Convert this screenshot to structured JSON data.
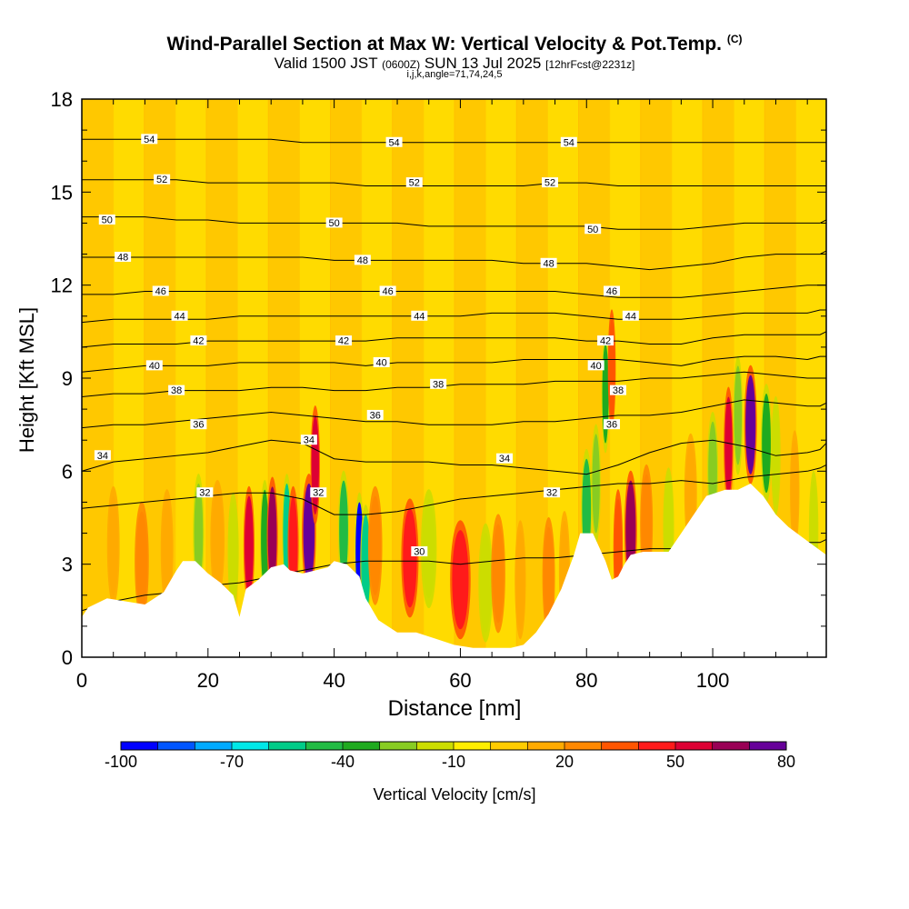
{
  "header": {
    "title": "Wind-Parallel Section at Max W: Vertical Velocity & Pot.Temp.",
    "title_units": "(C)",
    "valid_prefix": "Valid 1500 JST",
    "valid_utc": "(0600Z)",
    "valid_date": "SUN 13 Jul 2025",
    "forecast": "[12hrFcst@2231z]",
    "indices": "i,j,k,angle=71,74,24,5"
  },
  "chart_data": {
    "type": "contour",
    "xlabel": "Distance [nm]",
    "ylabel": "Height [Kft MSL]",
    "xlim": [
      0,
      118
    ],
    "ylim": [
      0,
      18
    ],
    "x_ticks": [
      0,
      20,
      40,
      60,
      80,
      100
    ],
    "y_ticks": [
      0,
      3,
      6,
      9,
      12,
      15,
      18
    ],
    "fill_variable": "Vertical Velocity [cm/s]",
    "contour_variable": "Potential Temperature (C)",
    "terrain": {
      "x": [
        0,
        1,
        4,
        10,
        13,
        15,
        16,
        18,
        20,
        22,
        24,
        25,
        26,
        28,
        30,
        32,
        33,
        35,
        37,
        39,
        40,
        42,
        44,
        45,
        47,
        50,
        53,
        56,
        59,
        62,
        65,
        68,
        70,
        72,
        74,
        76,
        78,
        79,
        81,
        83,
        84,
        85,
        86,
        87,
        89,
        91,
        93,
        95,
        97,
        99,
        102,
        104,
        106,
        108,
        110,
        112,
        114,
        116,
        118
      ],
      "y": [
        1.3,
        1.6,
        1.9,
        1.7,
        2.1,
        2.8,
        3.1,
        3.1,
        2.7,
        2.4,
        2.0,
        1.3,
        2.2,
        2.5,
        2.9,
        3.0,
        2.8,
        2.7,
        2.8,
        2.9,
        3.1,
        3.0,
        2.6,
        1.9,
        1.2,
        0.8,
        0.8,
        0.6,
        0.4,
        0.3,
        0.3,
        0.3,
        0.4,
        0.8,
        1.4,
        2.2,
        3.3,
        4.0,
        4.0,
        3.1,
        2.5,
        2.6,
        3.0,
        3.3,
        3.4,
        3.4,
        3.4,
        4.0,
        4.6,
        5.2,
        5.4,
        5.4,
        5.6,
        5.2,
        4.6,
        4.2,
        3.9,
        3.6,
        3.3
      ]
    },
    "isentropes": [
      {
        "theta": 30,
        "y": [
          1.5,
          1.8,
          2.0,
          2.1,
          2.3,
          2.4,
          2.6,
          2.8,
          3.0,
          3.1,
          3.1,
          3.1,
          3.0,
          3.1,
          3.2,
          3.2,
          3.3,
          3.4,
          3.5,
          3.5,
          3.5,
          3.6,
          3.6,
          3.7,
          3.7,
          3.8
        ]
      },
      {
        "theta": 32,
        "y": [
          4.8,
          4.9,
          5.0,
          5.1,
          5.2,
          5.3,
          5.3,
          5.1,
          4.6,
          4.6,
          4.7,
          4.9,
          5.1,
          5.2,
          5.3,
          5.4,
          5.5,
          5.6,
          5.6,
          5.7,
          5.6,
          5.8,
          5.9,
          6.0,
          6.1,
          6.2
        ]
      },
      {
        "theta": 34,
        "y": [
          6.0,
          6.3,
          6.4,
          6.5,
          6.6,
          6.8,
          7.0,
          6.9,
          6.4,
          6.3,
          6.3,
          6.3,
          6.2,
          6.2,
          6.1,
          6.0,
          5.9,
          6.2,
          6.6,
          6.9,
          7.0,
          6.8,
          6.5,
          6.6,
          6.7,
          6.9
        ]
      },
      {
        "theta": 36,
        "y": [
          7.4,
          7.5,
          7.5,
          7.6,
          7.7,
          7.8,
          7.9,
          7.8,
          7.7,
          7.6,
          7.6,
          7.5,
          7.5,
          7.5,
          7.6,
          7.6,
          7.7,
          7.8,
          7.8,
          7.9,
          8.1,
          8.3,
          8.2,
          8.1,
          8.1,
          8.2
        ]
      },
      {
        "theta": 38,
        "y": [
          8.4,
          8.5,
          8.5,
          8.6,
          8.6,
          8.6,
          8.7,
          8.7,
          8.6,
          8.6,
          8.7,
          8.7,
          8.8,
          8.8,
          8.8,
          8.9,
          8.9,
          8.9,
          9.0,
          9.0,
          9.1,
          9.2,
          9.1,
          9.0,
          9.0,
          9.0
        ]
      },
      {
        "theta": 40,
        "y": [
          9.2,
          9.3,
          9.4,
          9.4,
          9.4,
          9.5,
          9.5,
          9.5,
          9.5,
          9.4,
          9.5,
          9.5,
          9.5,
          9.5,
          9.6,
          9.6,
          9.6,
          9.6,
          9.5,
          9.4,
          9.6,
          9.7,
          9.7,
          9.6,
          9.7,
          9.7
        ]
      },
      {
        "theta": 42,
        "y": [
          10.0,
          10.1,
          10.1,
          10.1,
          10.2,
          10.2,
          10.2,
          10.2,
          10.2,
          10.2,
          10.3,
          10.3,
          10.3,
          10.3,
          10.3,
          10.3,
          10.2,
          10.2,
          10.1,
          10.1,
          10.3,
          10.4,
          10.4,
          10.4,
          10.4,
          10.5
        ]
      },
      {
        "theta": 44,
        "y": [
          10.8,
          10.9,
          10.9,
          10.9,
          10.9,
          11.0,
          11.0,
          11.0,
          11.0,
          11.0,
          11.0,
          11.0,
          11.0,
          11.1,
          11.1,
          11.1,
          11.0,
          10.9,
          10.9,
          10.9,
          11.0,
          11.1,
          11.1,
          11.1,
          11.2,
          11.2
        ]
      },
      {
        "theta": 46,
        "y": [
          11.7,
          11.7,
          11.8,
          11.8,
          11.8,
          11.8,
          11.8,
          11.8,
          11.8,
          11.8,
          11.8,
          11.8,
          11.8,
          11.8,
          11.8,
          11.8,
          11.7,
          11.6,
          11.6,
          11.6,
          11.7,
          11.8,
          11.9,
          12.0,
          12.0,
          12.0
        ]
      },
      {
        "theta": 48,
        "y": [
          12.9,
          12.9,
          12.9,
          12.9,
          12.9,
          12.9,
          12.9,
          12.9,
          12.8,
          12.8,
          12.8,
          12.8,
          12.8,
          12.8,
          12.7,
          12.7,
          12.7,
          12.6,
          12.5,
          12.6,
          12.7,
          12.9,
          13.0,
          13.0,
          13.0,
          13.1
        ]
      },
      {
        "theta": 50,
        "y": [
          14.2,
          14.2,
          14.2,
          14.1,
          14.1,
          14.0,
          14.0,
          14.0,
          14.0,
          14.0,
          14.0,
          13.9,
          13.9,
          13.9,
          13.9,
          13.9,
          13.9,
          13.8,
          13.8,
          13.8,
          13.9,
          14.0,
          14.0,
          14.0,
          14.0,
          14.1
        ]
      },
      {
        "theta": 52,
        "y": [
          15.4,
          15.4,
          15.4,
          15.4,
          15.3,
          15.3,
          15.3,
          15.3,
          15.3,
          15.2,
          15.2,
          15.2,
          15.2,
          15.2,
          15.2,
          15.3,
          15.3,
          15.2,
          15.2,
          15.2,
          15.2,
          15.2,
          15.2,
          15.2,
          15.2,
          15.2
        ]
      },
      {
        "theta": 54,
        "y": [
          16.7,
          16.7,
          16.7,
          16.7,
          16.7,
          16.7,
          16.7,
          16.6,
          16.6,
          16.6,
          16.6,
          16.6,
          16.6,
          16.6,
          16.6,
          16.6,
          16.6,
          16.6,
          16.6,
          16.6,
          16.6,
          16.6,
          16.6,
          16.6,
          16.6,
          16.6
        ]
      }
    ],
    "isentrope_x": [
      0,
      5,
      10,
      15,
      20,
      25,
      30,
      35,
      40,
      45,
      50,
      55,
      60,
      65,
      70,
      75,
      80,
      85,
      90,
      95,
      100,
      105,
      110,
      115,
      117,
      118
    ],
    "isentrope_labels": [
      {
        "text": "30",
        "x": 53.5,
        "y": 3.4
      },
      {
        "text": "32",
        "x": 19.5,
        "y": 5.3
      },
      {
        "text": "32",
        "x": 37.5,
        "y": 5.3
      },
      {
        "text": "32",
        "x": 74.5,
        "y": 5.3
      },
      {
        "text": "34",
        "x": 3.3,
        "y": 6.5
      },
      {
        "text": "34",
        "x": 36.0,
        "y": 7.0
      },
      {
        "text": "34",
        "x": 67.0,
        "y": 6.4
      },
      {
        "text": "36",
        "x": 18.5,
        "y": 7.5
      },
      {
        "text": "36",
        "x": 46.5,
        "y": 7.8
      },
      {
        "text": "36",
        "x": 84.0,
        "y": 7.5
      },
      {
        "text": "38",
        "x": 15.0,
        "y": 8.6
      },
      {
        "text": "38",
        "x": 56.5,
        "y": 8.8
      },
      {
        "text": "38",
        "x": 85.0,
        "y": 8.6
      },
      {
        "text": "40",
        "x": 11.5,
        "y": 9.4
      },
      {
        "text": "40",
        "x": 47.5,
        "y": 9.5
      },
      {
        "text": "40",
        "x": 81.5,
        "y": 9.4
      },
      {
        "text": "42",
        "x": 18.5,
        "y": 10.2
      },
      {
        "text": "42",
        "x": 41.5,
        "y": 10.2
      },
      {
        "text": "42",
        "x": 83.0,
        "y": 10.2
      },
      {
        "text": "44",
        "x": 15.5,
        "y": 11.0
      },
      {
        "text": "44",
        "x": 53.5,
        "y": 11.0
      },
      {
        "text": "44",
        "x": 87.0,
        "y": 11.0
      },
      {
        "text": "46",
        "x": 12.5,
        "y": 11.8
      },
      {
        "text": "46",
        "x": 48.5,
        "y": 11.8
      },
      {
        "text": "46",
        "x": 84.0,
        "y": 11.8
      },
      {
        "text": "48",
        "x": 6.5,
        "y": 12.9
      },
      {
        "text": "48",
        "x": 44.5,
        "y": 12.8
      },
      {
        "text": "48",
        "x": 74.0,
        "y": 12.7
      },
      {
        "text": "50",
        "x": 4.0,
        "y": 14.1
      },
      {
        "text": "50",
        "x": 40.0,
        "y": 14.0
      },
      {
        "text": "50",
        "x": 81.0,
        "y": 13.8
      },
      {
        "text": "52",
        "x": 12.7,
        "y": 15.4
      },
      {
        "text": "52",
        "x": 52.7,
        "y": 15.3
      },
      {
        "text": "52",
        "x": 74.2,
        "y": 15.3
      },
      {
        "text": "54",
        "x": 10.7,
        "y": 16.7
      },
      {
        "text": "54",
        "x": 49.5,
        "y": 16.6
      },
      {
        "text": "54",
        "x": 77.2,
        "y": 16.6
      }
    ],
    "velocity_cells": [
      {
        "x": 5,
        "y": 3.6,
        "w": 0.8,
        "v": 14
      },
      {
        "x": 9.5,
        "y": 3.1,
        "w": 0.9,
        "v": 20
      },
      {
        "x": 13.5,
        "y": 3.5,
        "w": 0.8,
        "v": 10
      },
      {
        "x": 18.5,
        "y": 4.0,
        "w": 0.7,
        "v": -28
      },
      {
        "x": 21.5,
        "y": 3.8,
        "w": 0.9,
        "v": 18
      },
      {
        "x": 24,
        "y": 3.4,
        "w": 0.7,
        "v": -20
      },
      {
        "x": 26.5,
        "y": 3.6,
        "w": 0.7,
        "v": 55
      },
      {
        "x": 29,
        "y": 3.8,
        "w": 0.6,
        "v": -40
      },
      {
        "x": 30.2,
        "y": 3.9,
        "w": 0.7,
        "v": 60
      },
      {
        "x": 32.5,
        "y": 4.0,
        "w": 0.6,
        "v": -55
      },
      {
        "x": 33.5,
        "y": 3.6,
        "w": 0.7,
        "v": 40
      },
      {
        "x": 36,
        "y": 4.0,
        "w": 0.9,
        "v": 72
      },
      {
        "x": 37,
        "y": 6.2,
        "w": 0.6,
        "v": 55
      },
      {
        "x": 41.5,
        "y": 4.1,
        "w": 0.7,
        "v": -45
      },
      {
        "x": 44,
        "y": 3.4,
        "w": 0.6,
        "v": -100
      },
      {
        "x": 45,
        "y": 3.0,
        "w": 0.7,
        "v": -60
      },
      {
        "x": 46.5,
        "y": 3.6,
        "w": 0.9,
        "v": 22
      },
      {
        "x": 52,
        "y": 3.2,
        "w": 1.1,
        "v": 42
      },
      {
        "x": 55,
        "y": 3.5,
        "w": 1.0,
        "v": -12
      },
      {
        "x": 60,
        "y": 2.5,
        "w": 1.3,
        "v": 40
      },
      {
        "x": 64,
        "y": 2.4,
        "w": 0.9,
        "v": -18
      },
      {
        "x": 66,
        "y": 2.7,
        "w": 0.9,
        "v": 22
      },
      {
        "x": 69.5,
        "y": 2.5,
        "w": 0.7,
        "v": 10
      },
      {
        "x": 74,
        "y": 2.6,
        "w": 0.8,
        "v": 20
      },
      {
        "x": 76.5,
        "y": 2.8,
        "w": 0.7,
        "v": 14
      },
      {
        "x": 80,
        "y": 4.8,
        "w": 0.7,
        "v": -45
      },
      {
        "x": 81.5,
        "y": 5.6,
        "w": 0.6,
        "v": -30
      },
      {
        "x": 83,
        "y": 8.5,
        "w": 0.5,
        "v": -40
      },
      {
        "x": 84,
        "y": 9.3,
        "w": 0.5,
        "v": 30
      },
      {
        "x": 85,
        "y": 3.5,
        "w": 0.6,
        "v": 32
      },
      {
        "x": 87,
        "y": 4.1,
        "w": 0.8,
        "v": 60
      },
      {
        "x": 89.5,
        "y": 4.3,
        "w": 0.8,
        "v": 28
      },
      {
        "x": 93,
        "y": 4.2,
        "w": 0.7,
        "v": -12
      },
      {
        "x": 96.5,
        "y": 5.3,
        "w": 0.8,
        "v": 14
      },
      {
        "x": 100,
        "y": 6.0,
        "w": 0.7,
        "v": -25
      },
      {
        "x": 102.5,
        "y": 6.8,
        "w": 0.6,
        "v": 52
      },
      {
        "x": 104,
        "y": 7.8,
        "w": 0.6,
        "v": -30
      },
      {
        "x": 106,
        "y": 7.5,
        "w": 0.8,
        "v": 85
      },
      {
        "x": 108.5,
        "y": 6.9,
        "w": 0.7,
        "v": -35
      },
      {
        "x": 110,
        "y": 6.5,
        "w": 0.6,
        "v": -20
      },
      {
        "x": 113,
        "y": 5.4,
        "w": 0.6,
        "v": 10
      },
      {
        "x": 116,
        "y": 4.1,
        "w": 0.6,
        "v": -12
      }
    ],
    "colorbar": {
      "label": "Vertical Velocity [cm/s]",
      "min": -100,
      "max": 80,
      "step": 10,
      "tick_values": [
        -100,
        -70,
        -40,
        -10,
        20,
        50,
        80
      ],
      "tick_labels": [
        "-100",
        "-70",
        "-40",
        "-10",
        "20",
        "50",
        "80"
      ],
      "colors": [
        "#0000ff",
        "#0055ff",
        "#00aaff",
        "#00e8e8",
        "#00cc88",
        "#22bb44",
        "#1faa1f",
        "#88cc22",
        "#ccdd00",
        "#ffee00",
        "#ffcc00",
        "#ffaa00",
        "#ff8800",
        "#ff5500",
        "#ff1a1a",
        "#dd0033",
        "#990055",
        "#660099"
      ]
    }
  }
}
